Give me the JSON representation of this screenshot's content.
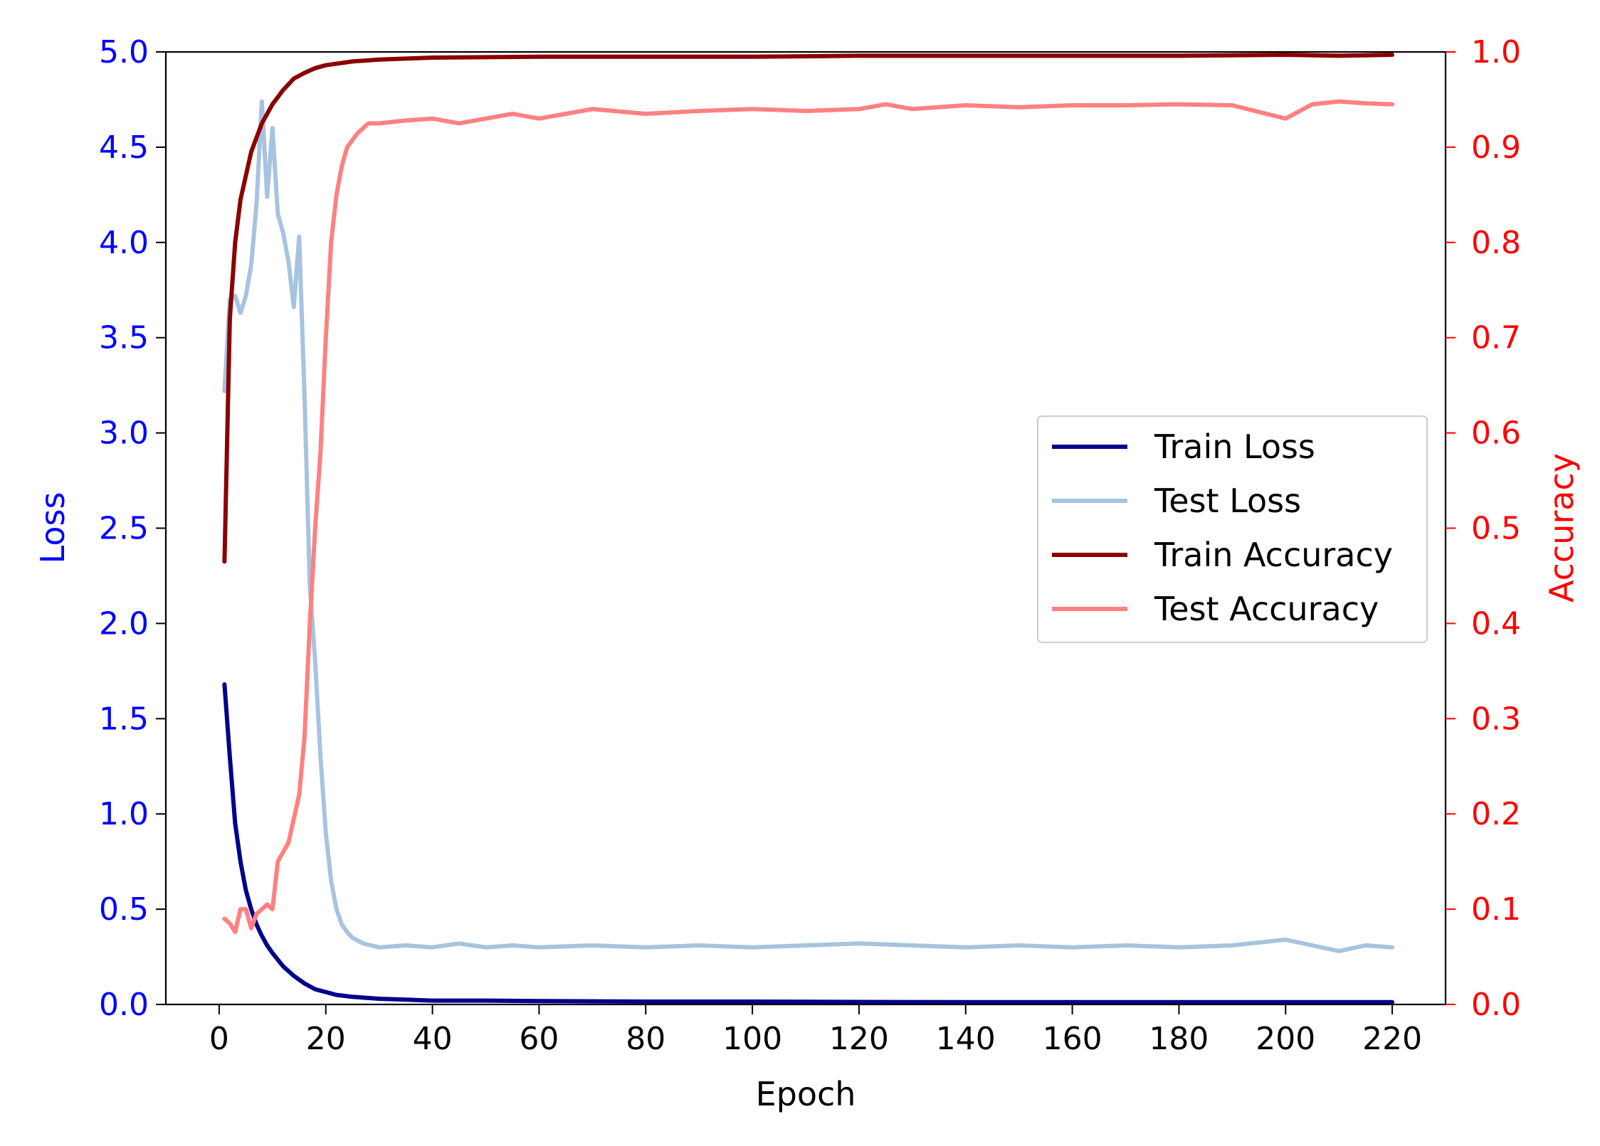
{
  "chart_data": {
    "type": "line",
    "title": "",
    "xlabel": "Epoch",
    "ylabel_left": "Loss",
    "ylabel_right": "Accuracy",
    "xlim": [
      -10,
      230
    ],
    "ylim_left": [
      0,
      5
    ],
    "ylim_right": [
      0,
      1
    ],
    "x_ticks": [
      "0",
      "20",
      "40",
      "60",
      "80",
      "100",
      "120",
      "140",
      "160",
      "180",
      "200",
      "220"
    ],
    "y_ticks_left": [
      "0.0",
      "0.5",
      "1.0",
      "1.5",
      "2.0",
      "2.5",
      "3.0",
      "3.5",
      "4.0",
      "4.5",
      "5.0"
    ],
    "y_ticks_right": [
      "0.0",
      "0.1",
      "0.2",
      "0.3",
      "0.4",
      "0.5",
      "0.6",
      "0.7",
      "0.8",
      "0.9",
      "1.0"
    ],
    "grid": false,
    "legend_position": "center-right",
    "colors": {
      "left_axis": "#0000ff",
      "right_axis": "#ff0000",
      "train_loss": "#00008b",
      "test_loss": "#a6c3e0",
      "train_accuracy": "#8b0000",
      "test_accuracy": "#ff8080"
    },
    "series": [
      {
        "name": "Train Loss",
        "axis": "left",
        "key": "train_loss",
        "points": [
          [
            1,
            1.68
          ],
          [
            2,
            1.3
          ],
          [
            3,
            0.95
          ],
          [
            4,
            0.75
          ],
          [
            5,
            0.6
          ],
          [
            6,
            0.5
          ],
          [
            7,
            0.42
          ],
          [
            8,
            0.36
          ],
          [
            9,
            0.31
          ],
          [
            10,
            0.27
          ],
          [
            12,
            0.2
          ],
          [
            14,
            0.15
          ],
          [
            16,
            0.11
          ],
          [
            18,
            0.08
          ],
          [
            20,
            0.065
          ],
          [
            22,
            0.05
          ],
          [
            25,
            0.04
          ],
          [
            30,
            0.03
          ],
          [
            35,
            0.025
          ],
          [
            40,
            0.02
          ],
          [
            50,
            0.02
          ],
          [
            60,
            0.018
          ],
          [
            80,
            0.015
          ],
          [
            100,
            0.015
          ],
          [
            120,
            0.013
          ],
          [
            140,
            0.012
          ],
          [
            160,
            0.012
          ],
          [
            180,
            0.012
          ],
          [
            200,
            0.012
          ],
          [
            210,
            0.012
          ],
          [
            220,
            0.012
          ]
        ]
      },
      {
        "name": "Test Loss",
        "axis": "left",
        "key": "test_loss",
        "points": [
          [
            1,
            3.22
          ],
          [
            2,
            3.7
          ],
          [
            3,
            3.72
          ],
          [
            4,
            3.63
          ],
          [
            5,
            3.72
          ],
          [
            6,
            3.88
          ],
          [
            7,
            4.2
          ],
          [
            8,
            4.74
          ],
          [
            9,
            4.24
          ],
          [
            10,
            4.6
          ],
          [
            11,
            4.15
          ],
          [
            12,
            4.05
          ],
          [
            13,
            3.9
          ],
          [
            14,
            3.66
          ],
          [
            15,
            4.03
          ],
          [
            16,
            3.2
          ],
          [
            17,
            2.2
          ],
          [
            18,
            1.8
          ],
          [
            19,
            1.3
          ],
          [
            20,
            0.9
          ],
          [
            21,
            0.65
          ],
          [
            22,
            0.5
          ],
          [
            23,
            0.42
          ],
          [
            24,
            0.38
          ],
          [
            25,
            0.35
          ],
          [
            27,
            0.32
          ],
          [
            30,
            0.3
          ],
          [
            35,
            0.31
          ],
          [
            40,
            0.3
          ],
          [
            45,
            0.32
          ],
          [
            50,
            0.3
          ],
          [
            55,
            0.31
          ],
          [
            60,
            0.3
          ],
          [
            70,
            0.31
          ],
          [
            80,
            0.3
          ],
          [
            90,
            0.31
          ],
          [
            100,
            0.3
          ],
          [
            110,
            0.31
          ],
          [
            120,
            0.32
          ],
          [
            130,
            0.31
          ],
          [
            140,
            0.3
          ],
          [
            150,
            0.31
          ],
          [
            160,
            0.3
          ],
          [
            170,
            0.31
          ],
          [
            180,
            0.3
          ],
          [
            190,
            0.31
          ],
          [
            200,
            0.34
          ],
          [
            205,
            0.31
          ],
          [
            210,
            0.28
          ],
          [
            215,
            0.31
          ],
          [
            220,
            0.3
          ]
        ]
      },
      {
        "name": "Train Accuracy",
        "axis": "right",
        "key": "train_accuracy",
        "points": [
          [
            1,
            0.465
          ],
          [
            2,
            0.72
          ],
          [
            3,
            0.8
          ],
          [
            4,
            0.845
          ],
          [
            5,
            0.87
          ],
          [
            6,
            0.895
          ],
          [
            7,
            0.91
          ],
          [
            8,
            0.925
          ],
          [
            10,
            0.945
          ],
          [
            12,
            0.96
          ],
          [
            14,
            0.972
          ],
          [
            16,
            0.978
          ],
          [
            18,
            0.983
          ],
          [
            20,
            0.986
          ],
          [
            25,
            0.99
          ],
          [
            30,
            0.992
          ],
          [
            40,
            0.994
          ],
          [
            60,
            0.995
          ],
          [
            80,
            0.995
          ],
          [
            100,
            0.995
          ],
          [
            120,
            0.996
          ],
          [
            140,
            0.996
          ],
          [
            160,
            0.996
          ],
          [
            180,
            0.996
          ],
          [
            200,
            0.997
          ],
          [
            210,
            0.996
          ],
          [
            220,
            0.997
          ]
        ]
      },
      {
        "name": "Test Accuracy",
        "axis": "right",
        "key": "test_accuracy",
        "points": [
          [
            1,
            0.09
          ],
          [
            2,
            0.085
          ],
          [
            3,
            0.076
          ],
          [
            4,
            0.1
          ],
          [
            5,
            0.1
          ],
          [
            6,
            0.08
          ],
          [
            7,
            0.095
          ],
          [
            8,
            0.1
          ],
          [
            9,
            0.105
          ],
          [
            10,
            0.1
          ],
          [
            11,
            0.15
          ],
          [
            12,
            0.16
          ],
          [
            13,
            0.17
          ],
          [
            15,
            0.22
          ],
          [
            16,
            0.28
          ],
          [
            17,
            0.4
          ],
          [
            18,
            0.5
          ],
          [
            19,
            0.58
          ],
          [
            20,
            0.7
          ],
          [
            21,
            0.8
          ],
          [
            22,
            0.85
          ],
          [
            23,
            0.88
          ],
          [
            24,
            0.9
          ],
          [
            26,
            0.915
          ],
          [
            28,
            0.925
          ],
          [
            30,
            0.925
          ],
          [
            35,
            0.928
          ],
          [
            40,
            0.93
          ],
          [
            45,
            0.925
          ],
          [
            50,
            0.93
          ],
          [
            55,
            0.935
          ],
          [
            60,
            0.93
          ],
          [
            65,
            0.935
          ],
          [
            70,
            0.94
          ],
          [
            80,
            0.935
          ],
          [
            90,
            0.938
          ],
          [
            100,
            0.94
          ],
          [
            110,
            0.938
          ],
          [
            120,
            0.94
          ],
          [
            125,
            0.945
          ],
          [
            130,
            0.94
          ],
          [
            140,
            0.944
          ],
          [
            150,
            0.942
          ],
          [
            160,
            0.944
          ],
          [
            170,
            0.944
          ],
          [
            180,
            0.945
          ],
          [
            190,
            0.944
          ],
          [
            200,
            0.93
          ],
          [
            205,
            0.945
          ],
          [
            210,
            0.948
          ],
          [
            215,
            0.946
          ],
          [
            220,
            0.945
          ]
        ]
      }
    ]
  }
}
